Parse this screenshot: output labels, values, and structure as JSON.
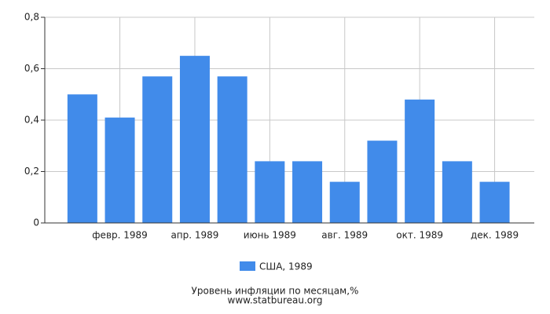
{
  "chart_data": {
    "type": "bar",
    "title": "Уровень инфляции по месяцам,%",
    "source": "www.statbureau.org",
    "categories": [
      null,
      "февр. 1989",
      null,
      "апр. 1989",
      null,
      "июнь 1989",
      null,
      "авг. 1989",
      null,
      "окт. 1989",
      null,
      "дек. 1989"
    ],
    "series": [
      {
        "name": "США, 1989",
        "color": "#418bea",
        "values": [
          0.5,
          0.41,
          0.57,
          0.65,
          0.57,
          0.24,
          0.24,
          0.16,
          0.32,
          0.48,
          0.24,
          0.16
        ]
      }
    ],
    "ylim": [
      0,
      0.8
    ],
    "yticks": [
      0,
      {
        "value": 0.2,
        "label": "0,2"
      },
      {
        "value": 0.4,
        "label": "0,4"
      },
      {
        "value": 0.6,
        "label": "0,6"
      },
      {
        "value": 0.8,
        "label": "0,8"
      }
    ],
    "grid": true
  }
}
